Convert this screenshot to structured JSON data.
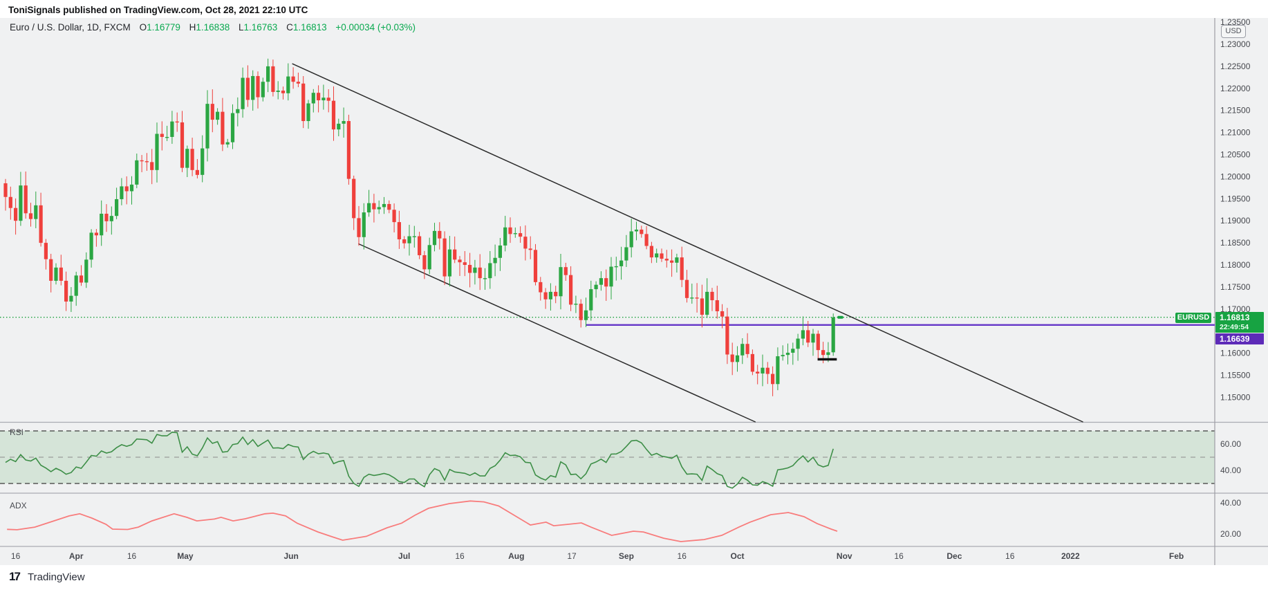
{
  "header": {
    "publish_info": "ToniSignals published on TradingView.com, Oct 28, 2021 22:10 UTC"
  },
  "legend": {
    "title": "Euro / U.S. Dollar, 1D, FXCM",
    "ohlc": [
      {
        "k": "O",
        "v": "1.16779"
      },
      {
        "k": "H",
        "v": "1.16838"
      },
      {
        "k": "L",
        "v": "1.16763"
      },
      {
        "k": "C",
        "v": "1.16813"
      }
    ],
    "change": "+0.00034 (+0.03%)"
  },
  "price_axis": {
    "unit_badge": "USD",
    "labels": [
      "1.23500",
      "1.23000",
      "1.22500",
      "1.22000",
      "1.21500",
      "1.21000",
      "1.20500",
      "1.20000",
      "1.19500",
      "1.19000",
      "1.18500",
      "1.18000",
      "1.17500",
      "1.17000",
      "1.16000",
      "1.15500",
      "1.15000"
    ]
  },
  "badges": {
    "symbol_pill": "EURUSD",
    "current_price": "1.16813",
    "countdown": "22:49:54",
    "purple_price": "1.16639"
  },
  "time_axis": {
    "labels": [
      {
        "i": 2,
        "t": "16",
        "major": false
      },
      {
        "i": 14,
        "t": "Apr",
        "major": true
      },
      {
        "i": 25,
        "t": "16",
        "major": false
      },
      {
        "i": 35.6,
        "t": "May",
        "major": true
      },
      {
        "i": 56.6,
        "t": "Jun",
        "major": true
      },
      {
        "i": 79,
        "t": "Jul",
        "major": true
      },
      {
        "i": 90,
        "t": "16",
        "major": false
      },
      {
        "i": 101.2,
        "t": "Aug",
        "major": true
      },
      {
        "i": 112.2,
        "t": "17",
        "major": false
      },
      {
        "i": 123,
        "t": "Sep",
        "major": true
      },
      {
        "i": 134,
        "t": "16",
        "major": false
      },
      {
        "i": 145,
        "t": "Oct",
        "major": true
      },
      {
        "i": 166.2,
        "t": "Nov",
        "major": true
      },
      {
        "i": 177,
        "t": "16",
        "major": false
      },
      {
        "i": 188,
        "t": "Dec",
        "major": true
      },
      {
        "i": 199,
        "t": "16",
        "major": false
      },
      {
        "i": 211,
        "t": "2022",
        "major": true
      },
      {
        "i": 232,
        "t": "Feb",
        "major": true
      }
    ]
  },
  "footer": {
    "logo_mark": "17",
    "brand": "TradingView"
  },
  "colors": {
    "up": "#2ba643",
    "down": "#ef403c",
    "legend_green": "#09a94f",
    "dotted_price": "#18a03b",
    "badge_green": "#17a342",
    "purple_line": "#6436c8",
    "purple_badge": "#5d2bb8",
    "rsi_line": "#3d8e47",
    "rsi_band": "rgba(76,160,80,0.16)",
    "adx_line": "#f87c7c",
    "trendline": "#2b2b2b",
    "separator": "#a9abb2",
    "axis_text": "#45474d",
    "background": "#f0f1f2"
  },
  "chart_data": {
    "type": "candlestick",
    "symbol": "EURUSD",
    "interval": "1D",
    "exchange": "FXCM",
    "title": "Euro / U.S. Dollar, 1D, FXCM",
    "price_pane": {
      "ylim": [
        1.1444,
        1.2362
      ],
      "grid": false,
      "candles": {
        "open_rule": "previous_close",
        "first_open": 1.1985,
        "closes": [
          1.1954,
          1.1929,
          1.19,
          1.198,
          1.1917,
          1.1904,
          1.1935,
          1.185,
          1.1813,
          1.1764,
          1.1794,
          1.1764,
          1.1717,
          1.173,
          1.1776,
          1.176,
          1.1812,
          1.1873,
          1.1867,
          1.1916,
          1.1899,
          1.1911,
          1.1949,
          1.1978,
          1.1967,
          1.1982,
          1.2037,
          1.2035,
          1.2033,
          1.2015,
          1.2097,
          1.209,
          1.209,
          1.2125,
          1.2123,
          1.202,
          1.2063,
          1.2015,
          1.2004,
          1.2064,
          1.2165,
          1.2129,
          1.2147,
          1.2073,
          1.2078,
          1.2144,
          1.2153,
          1.2224,
          1.2174,
          1.2228,
          1.218,
          1.2215,
          1.225,
          1.2192,
          1.2195,
          1.2189,
          1.2227,
          1.2215,
          1.2211,
          1.2126,
          1.2166,
          1.219,
          1.2173,
          1.2179,
          1.2172,
          1.2107,
          1.212,
          1.2126,
          1.1995,
          1.1906,
          1.1863,
          1.1919,
          1.194,
          1.1926,
          1.1931,
          1.1938,
          1.1925,
          1.1897,
          1.1858,
          1.1849,
          1.1865,
          1.1865,
          1.1822,
          1.179,
          1.1845,
          1.1877,
          1.186,
          1.1774,
          1.1835,
          1.1812,
          1.1806,
          1.18,
          1.1782,
          1.1794,
          1.177,
          1.177,
          1.1804,
          1.1816,
          1.1844,
          1.1885,
          1.187,
          1.1872,
          1.1864,
          1.1837,
          1.1834,
          1.1761,
          1.1738,
          1.1722,
          1.1739,
          1.1729,
          1.1795,
          1.1777,
          1.171,
          1.1712,
          1.1675,
          1.1697,
          1.1745,
          1.1755,
          1.177,
          1.1751,
          1.1796,
          1.1797,
          1.181,
          1.184,
          1.1876,
          1.188,
          1.187,
          1.1843,
          1.1817,
          1.1826,
          1.1814,
          1.181,
          1.1805,
          1.1817,
          1.1766,
          1.1725,
          1.1726,
          1.1724,
          1.1687,
          1.1739,
          1.172,
          1.1695,
          1.1683,
          1.1597,
          1.158,
          1.1595,
          1.1621,
          1.1598,
          1.1558,
          1.1554,
          1.1567,
          1.1553,
          1.153,
          1.1593,
          1.1596,
          1.1601,
          1.161,
          1.1633,
          1.1652,
          1.1624,
          1.1644,
          1.1607,
          1.1596,
          1.1602,
          1.16813
        ],
        "last_candle_override": {
          "h": 1.169,
          "l": 1.1594
        }
      },
      "price_lines": [
        {
          "name": "current-price-line",
          "price": 1.16813,
          "style": "dotted",
          "full_width": true
        },
        {
          "name": "purple-support-ray",
          "price": 1.16639,
          "style": "solid",
          "from_index": 115
        }
      ],
      "trendlines": [
        {
          "name": "channel-upper",
          "i1": 56.8,
          "p1": 1.2256,
          "i2": 213.5,
          "p2": 1.1444
        },
        {
          "name": "channel-lower",
          "i1": 69.9,
          "p1": 1.1848,
          "i2": 148.6,
          "p2": 1.1444
        }
      ],
      "support_mark": {
        "i1": 160.9,
        "i2": 164.7,
        "price": 1.1586
      },
      "last_tick_marker": {
        "i": 165.4,
        "price": 1.16813
      }
    },
    "rsi_pane": {
      "label": "RSI",
      "period": 14,
      "levels": [
        70,
        50,
        30
      ],
      "band": [
        30,
        70
      ],
      "axis_labels": [
        {
          "v": 60,
          "t": "60.00"
        },
        {
          "v": 40,
          "t": "40.00"
        }
      ]
    },
    "adx_pane": {
      "label": "ADX",
      "axis_labels": [
        {
          "v": 40,
          "t": "40.00"
        },
        {
          "v": 20,
          "t": "20.00"
        }
      ],
      "points": [
        [
          0.3,
          23
        ],
        [
          2.3,
          22.7
        ],
        [
          5.8,
          24.4
        ],
        [
          9.2,
          28
        ],
        [
          12.6,
          31.6
        ],
        [
          14.7,
          33
        ],
        [
          17.1,
          30.2
        ],
        [
          19.9,
          26.2
        ],
        [
          21.2,
          23.1
        ],
        [
          24.2,
          22.9
        ],
        [
          26.3,
          24.4
        ],
        [
          29,
          28.4
        ],
        [
          33.4,
          33
        ],
        [
          35.9,
          30.7
        ],
        [
          37.9,
          28.4
        ],
        [
          41.4,
          29.6
        ],
        [
          42.7,
          30.7
        ],
        [
          45.1,
          28.4
        ],
        [
          47.5,
          29.8
        ],
        [
          51.4,
          33
        ],
        [
          53,
          33.4
        ],
        [
          55.5,
          31.6
        ],
        [
          57.8,
          26.9
        ],
        [
          61.9,
          21.3
        ],
        [
          64.7,
          18.2
        ],
        [
          66.8,
          16
        ],
        [
          71.5,
          18.5
        ],
        [
          75.6,
          24
        ],
        [
          78.5,
          27
        ],
        [
          81.1,
          32
        ],
        [
          83.8,
          36.5
        ],
        [
          87.9,
          39.5
        ],
        [
          92.1,
          41.2
        ],
        [
          94.8,
          40.6
        ],
        [
          97.7,
          38
        ],
        [
          104,
          25.8
        ],
        [
          107.1,
          27.6
        ],
        [
          108.6,
          25.3
        ],
        [
          111.5,
          26.2
        ],
        [
          114.1,
          27.1
        ],
        [
          116,
          24.4
        ],
        [
          120.1,
          19.1
        ],
        [
          124.4,
          21.8
        ],
        [
          126.4,
          21.3
        ],
        [
          130.4,
          17.3
        ],
        [
          133.8,
          15.1
        ],
        [
          138.4,
          16.4
        ],
        [
          141.9,
          19.1
        ],
        [
          145.3,
          24.4
        ],
        [
          147.5,
          27.6
        ],
        [
          151.6,
          32.4
        ],
        [
          155.1,
          33.8
        ],
        [
          158.2,
          31.1
        ],
        [
          160.8,
          26.7
        ],
        [
          163.6,
          23.1
        ],
        [
          164.8,
          21.8
        ]
      ]
    }
  }
}
